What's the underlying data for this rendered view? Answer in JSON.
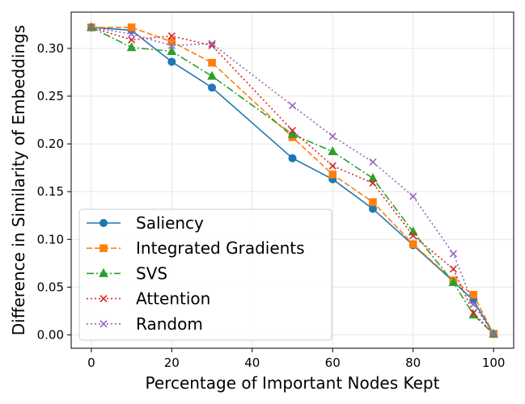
{
  "chart_data": {
    "type": "line",
    "title": "",
    "xlabel": "Percentage of Important Nodes Kept",
    "ylabel": "Difference in Similarity of Embeddings",
    "xlim": [
      -5,
      105
    ],
    "ylim": [
      -0.014,
      0.338
    ],
    "xticks": [
      0,
      20,
      40,
      60,
      80,
      100
    ],
    "xtick_labels": [
      "0",
      "20",
      "40",
      "60",
      "80",
      "100"
    ],
    "yticks": [
      0.0,
      0.05,
      0.1,
      0.15,
      0.2,
      0.25,
      0.3
    ],
    "ytick_labels": [
      "0.00",
      "0.05",
      "0.10",
      "0.15",
      "0.20",
      "0.25",
      "0.30"
    ],
    "grid": true,
    "legend_position": "lower-left",
    "series": [
      {
        "name": "Saliency",
        "color": "#1f77b4",
        "marker": "circle",
        "dash": "solid",
        "x": [
          0,
          10,
          20,
          30,
          50,
          60,
          70,
          80,
          90,
          95,
          100
        ],
        "y": [
          0.322,
          0.319,
          0.286,
          0.259,
          0.185,
          0.163,
          0.132,
          0.094,
          0.056,
          0.036,
          0.001
        ]
      },
      {
        "name": "Integrated Gradients",
        "color": "#ff7f0e",
        "marker": "square",
        "dash": "dashed",
        "x": [
          0,
          10,
          20,
          30,
          50,
          60,
          70,
          80,
          90,
          95,
          100
        ],
        "y": [
          0.322,
          0.322,
          0.307,
          0.285,
          0.207,
          0.168,
          0.139,
          0.095,
          0.057,
          0.042,
          0.001
        ]
      },
      {
        "name": "SVS",
        "color": "#2ca02c",
        "marker": "triangle",
        "dash": "dashdot",
        "x": [
          0,
          10,
          20,
          30,
          50,
          60,
          70,
          80,
          90,
          95,
          100
        ],
        "y": [
          0.322,
          0.301,
          0.297,
          0.271,
          0.21,
          0.192,
          0.164,
          0.108,
          0.055,
          0.021,
          0.001
        ]
      },
      {
        "name": "Attention",
        "color": "#d62728",
        "marker": "x",
        "dash": "dotted",
        "x": [
          0,
          10,
          20,
          30,
          50,
          60,
          70,
          80,
          90,
          95,
          100
        ],
        "y": [
          0.322,
          0.309,
          0.313,
          0.303,
          0.214,
          0.177,
          0.159,
          0.104,
          0.069,
          0.023,
          0.001
        ]
      },
      {
        "name": "Random",
        "color": "#9467bd",
        "marker": "x",
        "dash": "dotted",
        "x": [
          0,
          10,
          20,
          30,
          50,
          60,
          70,
          80,
          90,
          95,
          100
        ],
        "y": [
          0.322,
          0.315,
          0.303,
          0.305,
          0.24,
          0.208,
          0.181,
          0.145,
          0.085,
          0.032,
          0.001
        ]
      }
    ]
  }
}
